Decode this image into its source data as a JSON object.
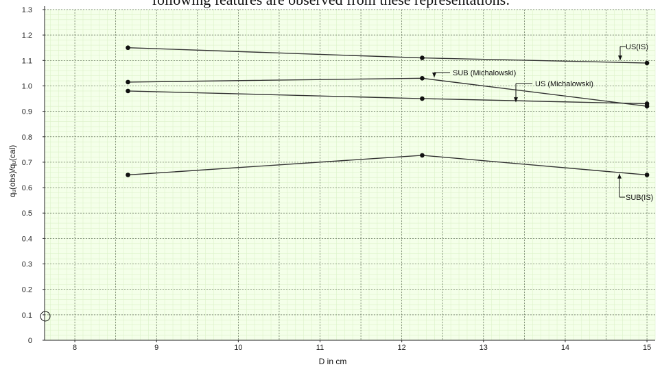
{
  "page": {
    "caption": "following features are observed from these representations:"
  },
  "chart_data": {
    "type": "line",
    "xlabel": "D in cm",
    "ylabel": "qᵤ(obs)/qᵤ(cal)",
    "xlim": [
      7.63,
      15.1
    ],
    "ylim": [
      0,
      1.3
    ],
    "x_ticks": [
      8,
      9,
      10,
      11,
      12,
      13,
      14,
      15
    ],
    "y_ticks": [
      0,
      0.1,
      0.2,
      0.3,
      0.4,
      0.5,
      0.6,
      0.7,
      0.8,
      0.9,
      1.0,
      1.1,
      1.2,
      1.3
    ],
    "y_tick_labels": [
      "0",
      "0.1",
      "0.2",
      "0.3",
      "0.4",
      "0.5",
      "0.6",
      "0.7",
      "0.8",
      "0.9",
      "1.0",
      "1.1",
      "1.2",
      "1.3"
    ],
    "grid": true,
    "grid_color": "#b8e39a",
    "minor_grid": true,
    "legend": "none",
    "series": [
      {
        "name": "US(IS)",
        "x": [
          8.65,
          12.25,
          15.0
        ],
        "values": [
          1.15,
          1.11,
          1.09
        ]
      },
      {
        "name": "SUB (Michalowski)",
        "x": [
          8.65,
          12.25,
          15.0
        ],
        "values": [
          1.015,
          1.03,
          0.92
        ]
      },
      {
        "name": "US (Michalowski)",
        "x": [
          8.65,
          12.25,
          15.0
        ],
        "values": [
          0.98,
          0.95,
          0.93
        ]
      },
      {
        "name": "SUB(IS)",
        "x": [
          8.65,
          12.25,
          15.0
        ],
        "values": [
          0.65,
          0.727,
          0.65
        ]
      }
    ],
    "annotations": [
      {
        "text": "US(IS)",
        "series": 0
      },
      {
        "text": "SUB (Michalowski)",
        "series": 1
      },
      {
        "text": "US (Michalowski)",
        "series": 2
      },
      {
        "text": "SUB(IS)",
        "series": 3
      }
    ]
  }
}
